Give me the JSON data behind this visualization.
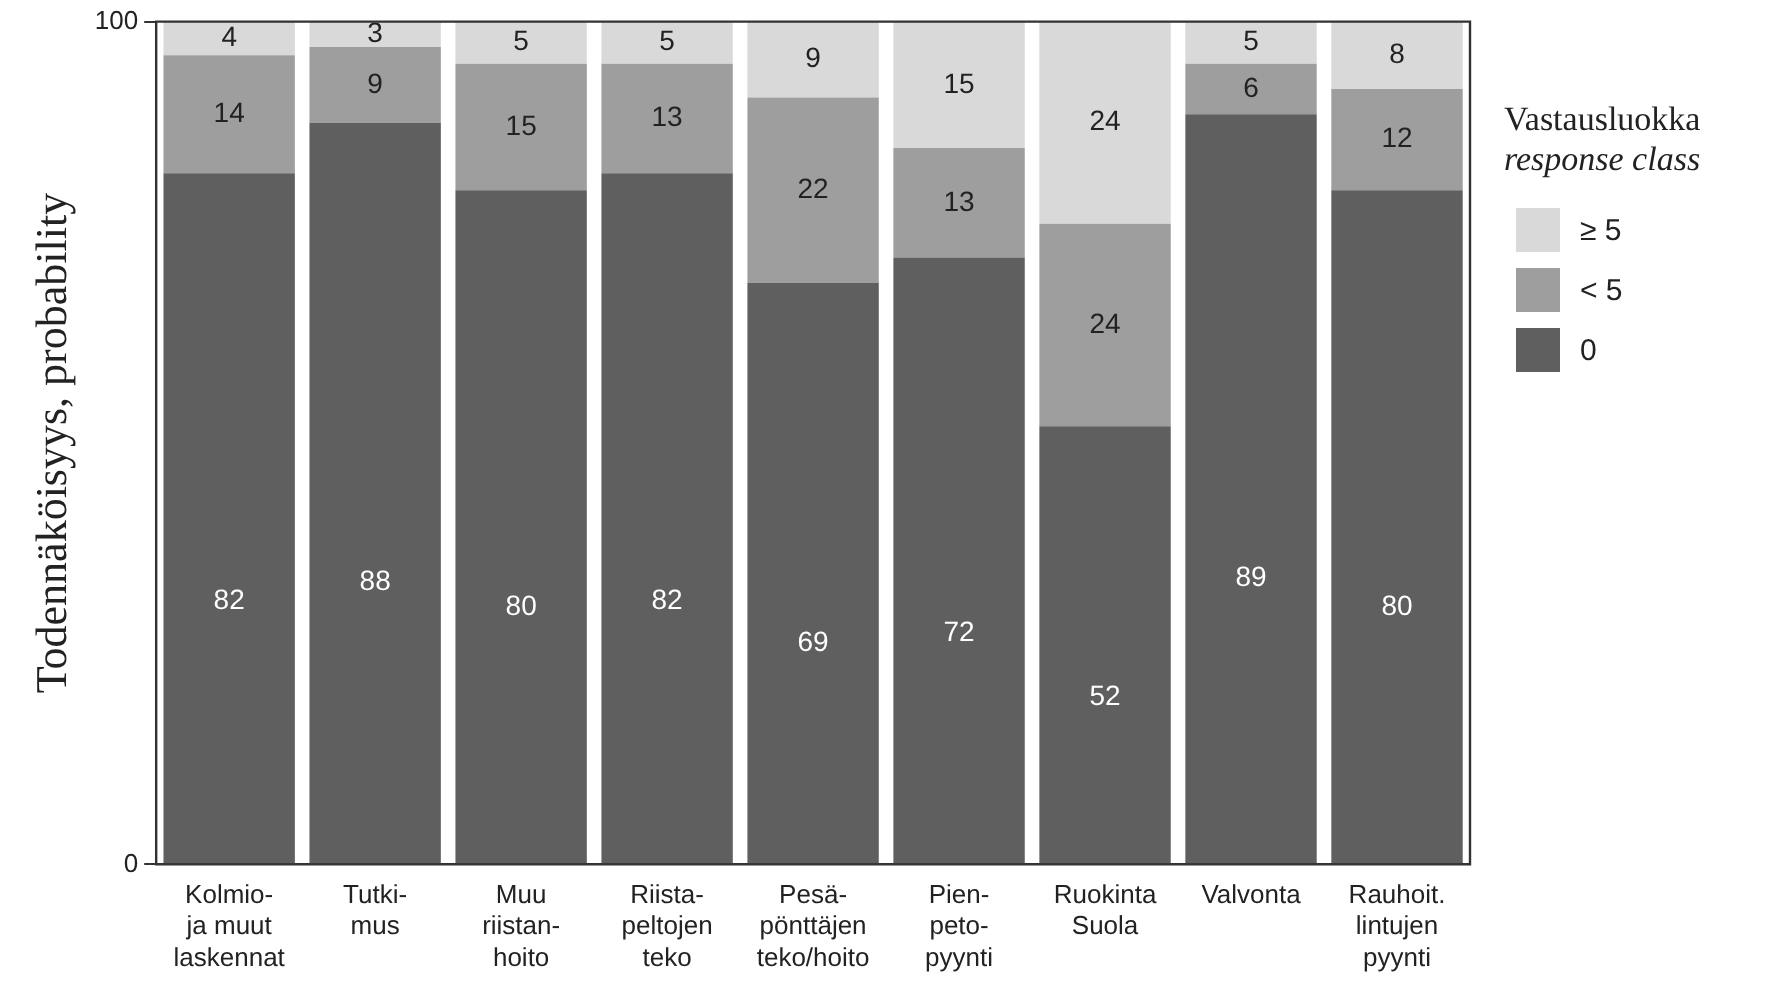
{
  "chart_data": {
    "type": "bar",
    "stacked": true,
    "ylabel": "Todennäköisyys, probability",
    "legend_title": "Vastausluokka\nresponse class",
    "legend": "right",
    "categories": [
      "Kolmio-\nja muut\nlaskennat",
      "Tutki-\nmus",
      "Muu\nriistan-\nhoito",
      "Riista-\npeltojen\nteko",
      "Pesä-\npönttäjen\nteko/hoito",
      "Pien-\npeto-\npyynti",
      "Ruokinta\nSuola",
      "Valvonta",
      "Rauhoit.\nlintujen\npyynti"
    ],
    "series": [
      {
        "name": "0",
        "color": "#5f5f5f",
        "values": [
          82,
          88,
          80,
          82,
          69,
          72,
          52,
          89,
          80
        ]
      },
      {
        "name": "< 5",
        "color": "#9e9e9e",
        "values": [
          14,
          9,
          15,
          13,
          22,
          13,
          24,
          6,
          12
        ]
      },
      {
        "name": "≥ 5",
        "color": "#d9d9d9",
        "values": [
          4,
          3,
          5,
          5,
          9,
          15,
          24,
          5,
          8
        ]
      }
    ],
    "ylim": [
      0,
      100
    ],
    "yticks": [
      0,
      100
    ],
    "grid": false,
    "data_labels": true
  }
}
